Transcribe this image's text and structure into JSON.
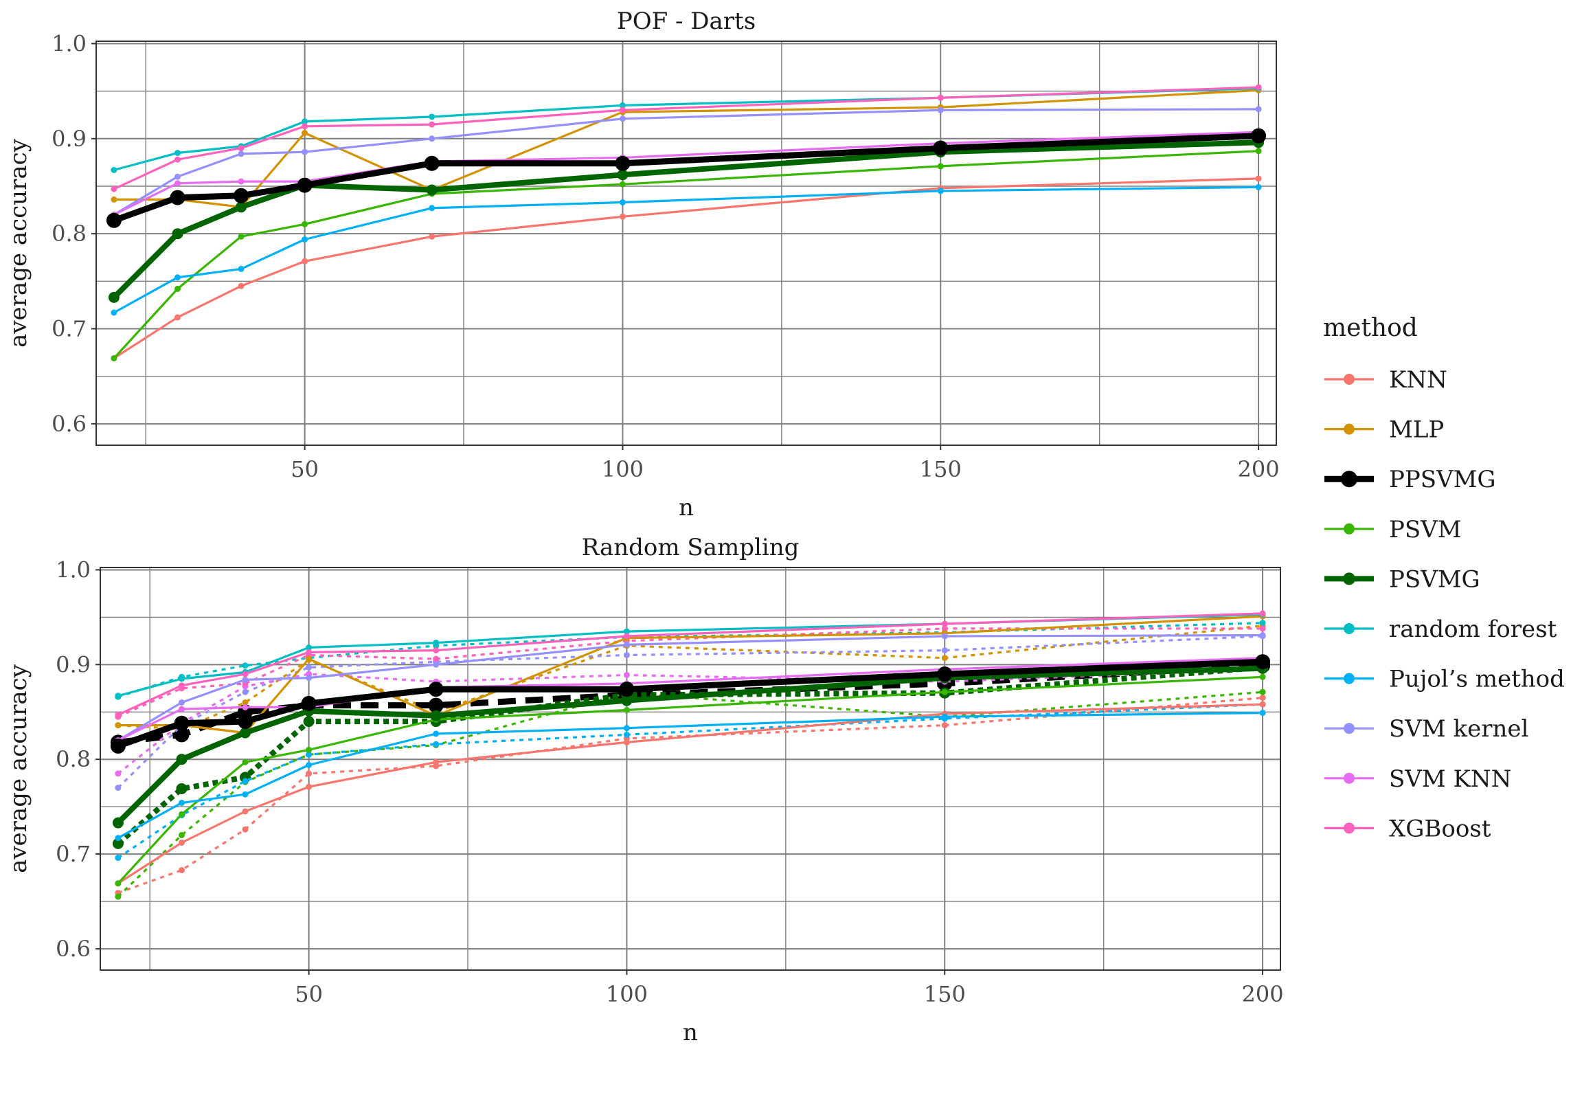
{
  "chart_data": {
    "type": "line",
    "x": [
      20,
      30,
      40,
      50,
      70,
      100,
      150,
      200
    ],
    "legend": {
      "title": "method",
      "position": "right",
      "entries": [
        {
          "name": "KNN",
          "color": "#F8766D"
        },
        {
          "name": "MLP",
          "color": "#D39200"
        },
        {
          "name": "PPSVMG",
          "color": "#000000"
        },
        {
          "name": "PSVM",
          "color": "#39B600"
        },
        {
          "name": "PSVMG",
          "color": "#006400"
        },
        {
          "name": "random forest",
          "color": "#00BFC4"
        },
        {
          "name": "Pujol’s method",
          "color": "#00B0F6"
        },
        {
          "name": "SVM kernel",
          "color": "#9590FF"
        },
        {
          "name": "SVM KNN",
          "color": "#E76BF3"
        },
        {
          "name": "XGBoost",
          "color": "#FF62BC"
        }
      ]
    },
    "panels": [
      {
        "title": "POF - Darts",
        "xlabel": "n",
        "ylabel": "average accuracy",
        "xlim": [
          17.2,
          202.8
        ],
        "ylim": [
          0.5775,
          1.0025
        ],
        "xticks": [
          50,
          100,
          150,
          200
        ],
        "yticks": [
          0.6,
          0.7,
          0.8,
          0.9,
          1.0
        ],
        "series": [
          {
            "name": "KNN",
            "values": [
              0.669,
              0.712,
              0.745,
              0.771,
              0.797,
              0.818,
              0.848,
              0.858
            ]
          },
          {
            "name": "MLP",
            "values": [
              0.836,
              0.836,
              0.828,
              0.906,
              0.846,
              0.928,
              0.933,
              0.951
            ]
          },
          {
            "name": "PPSVMG",
            "values": [
              0.814,
              0.838,
              0.84,
              0.851,
              0.874,
              0.874,
              0.89,
              0.903
            ]
          },
          {
            "name": "PSVM",
            "values": [
              0.669,
              0.742,
              0.797,
              0.81,
              0.842,
              0.852,
              0.871,
              0.887
            ]
          },
          {
            "name": "PSVMG",
            "values": [
              0.733,
              0.8,
              0.828,
              0.851,
              0.846,
              0.862,
              0.886,
              0.896
            ]
          },
          {
            "name": "random forest",
            "values": [
              0.867,
              0.885,
              0.892,
              0.918,
              0.923,
              0.935,
              0.943,
              0.953
            ]
          },
          {
            "name": "Pujol’s method",
            "values": [
              0.717,
              0.754,
              0.763,
              0.794,
              0.827,
              0.833,
              0.845,
              0.849
            ]
          },
          {
            "name": "SVM kernel",
            "values": [
              0.82,
              0.86,
              0.884,
              0.886,
              0.9,
              0.921,
              0.93,
              0.931
            ]
          },
          {
            "name": "SVM KNN",
            "values": [
              0.82,
              0.853,
              0.855,
              0.855,
              0.876,
              0.88,
              0.895,
              0.907
            ]
          },
          {
            "name": "XGBoost",
            "values": [
              0.847,
              0.878,
              0.89,
              0.913,
              0.915,
              0.93,
              0.943,
              0.954
            ]
          }
        ]
      },
      {
        "title": "Random Sampling",
        "xlabel": "n",
        "ylabel": "average accuracy",
        "xlim": [
          17.2,
          202.8
        ],
        "ylim": [
          0.5775,
          1.0025
        ],
        "xticks": [
          50,
          100,
          150,
          200
        ],
        "yticks": [
          0.6,
          0.7,
          0.8,
          0.9,
          1.0
        ],
        "series": [
          {
            "name": "KNN",
            "values": [
              0.669,
              0.712,
              0.745,
              0.771,
              0.797,
              0.818,
              0.848,
              0.858
            ]
          },
          {
            "name": "MLP",
            "values": [
              0.836,
              0.836,
              0.828,
              0.906,
              0.846,
              0.928,
              0.933,
              0.951
            ]
          },
          {
            "name": "PPSVMG",
            "values": [
              0.814,
              0.838,
              0.84,
              0.859,
              0.874,
              0.874,
              0.89,
              0.903
            ]
          },
          {
            "name": "PSVM",
            "values": [
              0.669,
              0.742,
              0.797,
              0.81,
              0.842,
              0.852,
              0.871,
              0.887
            ]
          },
          {
            "name": "PSVMG",
            "values": [
              0.733,
              0.8,
              0.828,
              0.851,
              0.846,
              0.862,
              0.886,
              0.896
            ]
          },
          {
            "name": "random forest",
            "values": [
              0.867,
              0.885,
              0.892,
              0.918,
              0.923,
              0.935,
              0.943,
              0.953
            ]
          },
          {
            "name": "Pujol’s method",
            "values": [
              0.717,
              0.754,
              0.763,
              0.794,
              0.827,
              0.833,
              0.845,
              0.849
            ]
          },
          {
            "name": "SVM kernel",
            "values": [
              0.82,
              0.86,
              0.884,
              0.886,
              0.9,
              0.921,
              0.93,
              0.931
            ]
          },
          {
            "name": "SVM KNN",
            "values": [
              0.82,
              0.853,
              0.855,
              0.855,
              0.876,
              0.88,
              0.895,
              0.907
            ]
          },
          {
            "name": "XGBoost",
            "values": [
              0.847,
              0.878,
              0.89,
              0.913,
              0.915,
              0.93,
              0.943,
              0.954
            ]
          }
        ],
        "dashed_series": [
          {
            "name": "KNN",
            "values": [
              0.659,
              0.683,
              0.726,
              0.785,
              0.793,
              0.822,
              0.836,
              0.865
            ]
          },
          {
            "name": "MLP",
            "values": [
              0.836,
              0.832,
              0.86,
              0.905,
              0.85,
              0.92,
              0.907,
              0.941
            ]
          },
          {
            "name": "PPSVMG",
            "values": [
              0.818,
              0.826,
              0.85,
              0.857,
              0.857,
              0.868,
              0.88,
              0.899
            ]
          },
          {
            "name": "PSVM",
            "values": [
              0.655,
              0.72,
              0.776,
              0.805,
              0.815,
              0.87,
              0.845,
              0.871
            ]
          },
          {
            "name": "PSVMG",
            "values": [
              0.711,
              0.769,
              0.781,
              0.84,
              0.84,
              0.868,
              0.87,
              0.897
            ]
          },
          {
            "name": "random forest",
            "values": [
              0.866,
              0.887,
              0.899,
              0.907,
              0.92,
              0.929,
              0.934,
              0.944
            ]
          },
          {
            "name": "Pujol’s method",
            "values": [
              0.696,
              0.741,
              0.777,
              0.805,
              0.816,
              0.826,
              0.843,
              0.858
            ]
          },
          {
            "name": "SVM kernel",
            "values": [
              0.77,
              0.836,
              0.871,
              0.897,
              0.903,
              0.91,
              0.915,
              0.93
            ]
          },
          {
            "name": "SVM KNN",
            "values": [
              0.785,
              0.838,
              0.877,
              0.89,
              0.882,
              0.889,
              0.882,
              0.895
            ]
          },
          {
            "name": "XGBoost",
            "values": [
              0.845,
              0.875,
              0.88,
              0.91,
              0.906,
              0.925,
              0.938,
              0.938
            ]
          }
        ]
      }
    ]
  }
}
